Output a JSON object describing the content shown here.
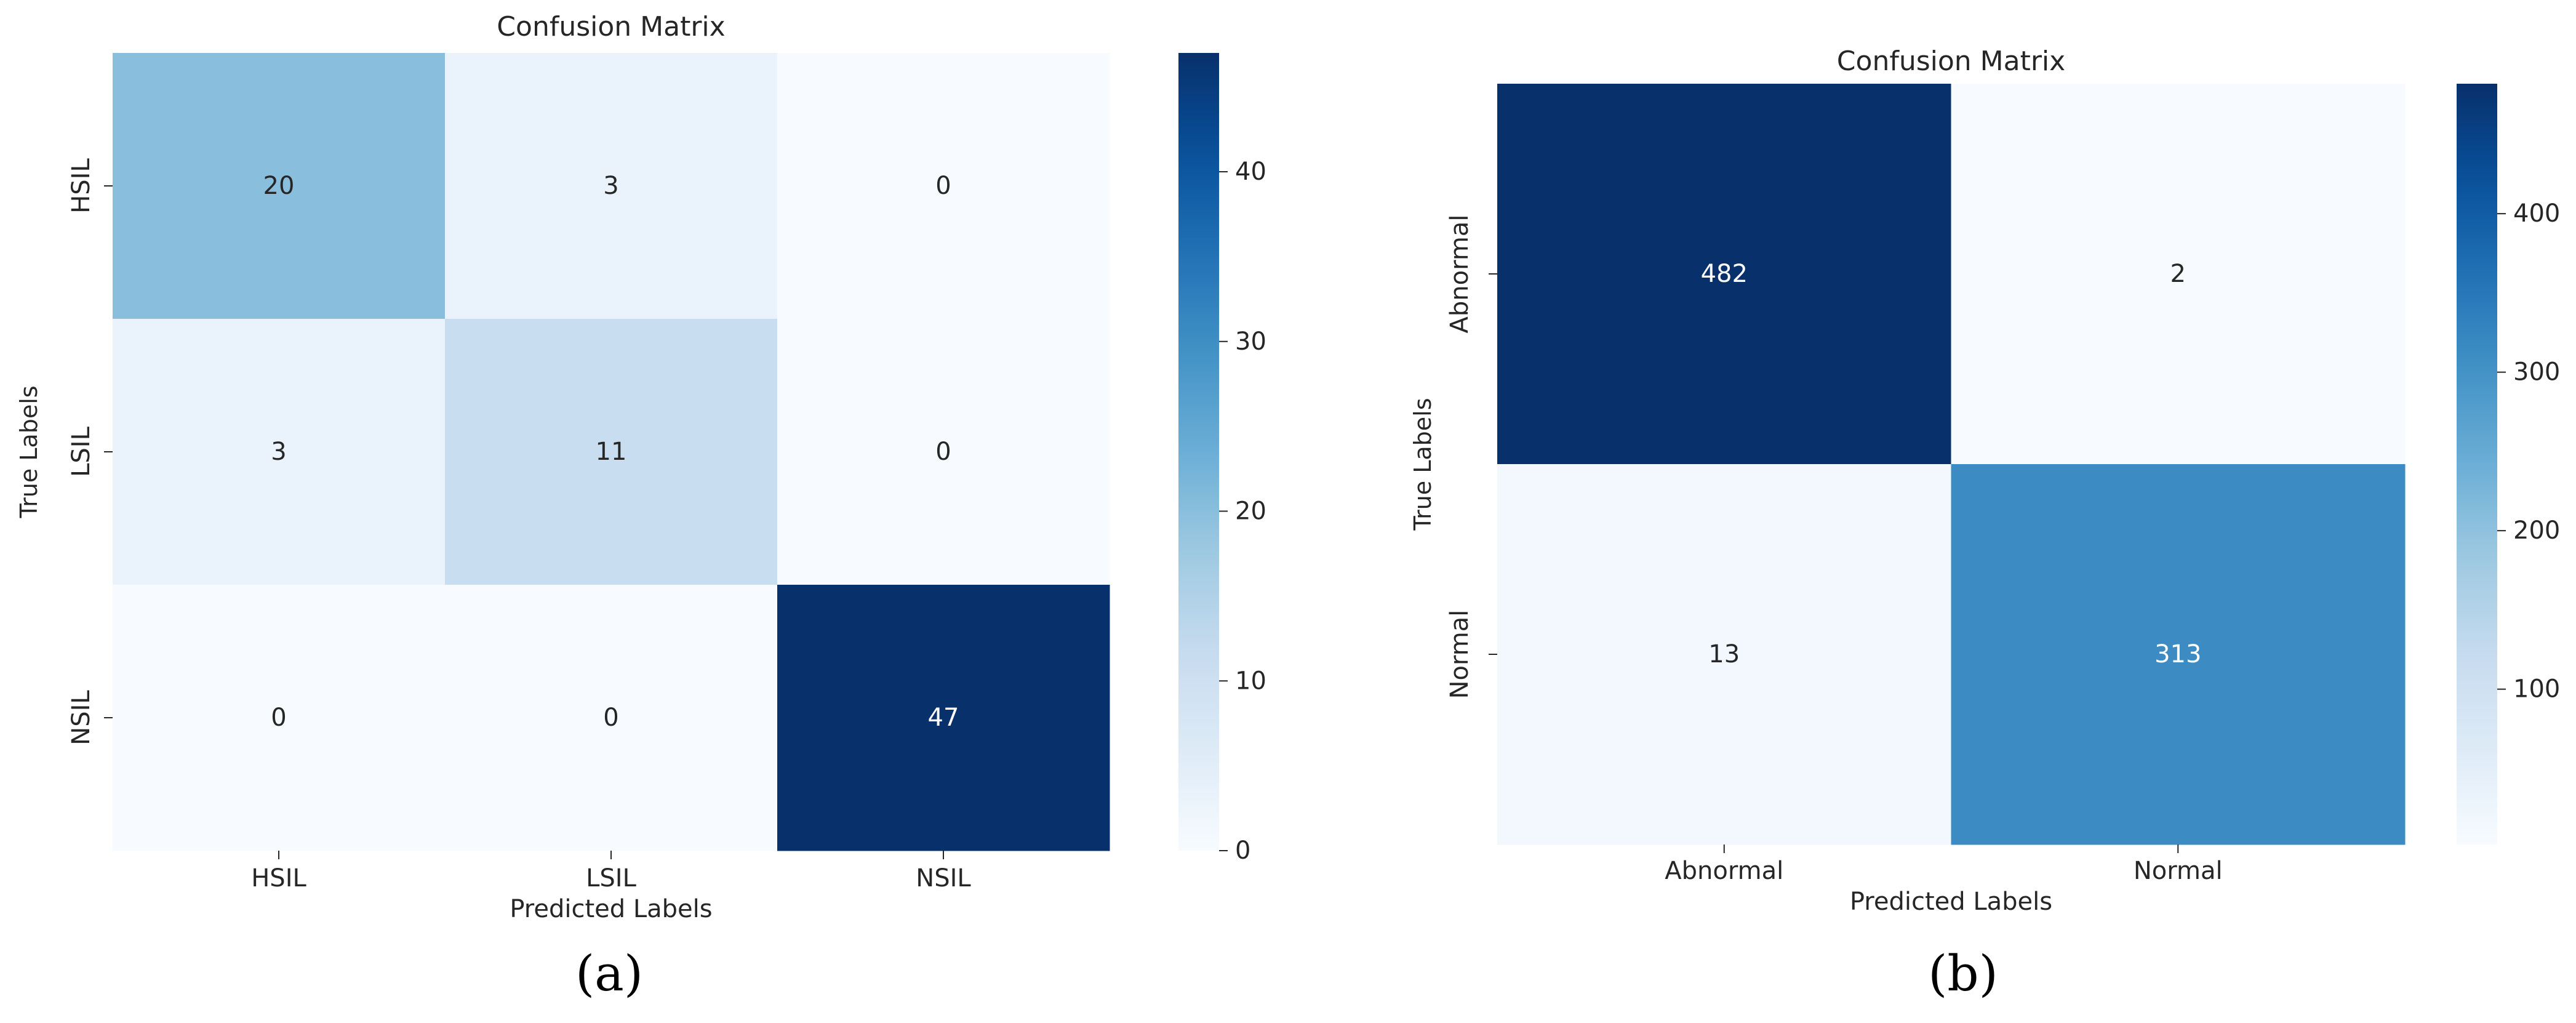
{
  "panels": [
    {
      "label": "(a)",
      "chart_data": {
        "type": "heatmap",
        "title": "Confusion Matrix",
        "xlabel": "Predicted Labels",
        "ylabel": "True Labels",
        "x_categories": [
          "HSIL",
          "LSIL",
          "NSIL"
        ],
        "y_categories": [
          "HSIL",
          "LSIL",
          "NSIL"
        ],
        "values": [
          [
            20,
            3,
            0
          ],
          [
            3,
            11,
            0
          ],
          [
            0,
            0,
            47
          ]
        ],
        "colormap": "Blues",
        "vmin": 0,
        "vmax": 47,
        "colorbar_ticks": [
          0,
          10,
          20,
          30,
          40
        ],
        "annotated": true
      }
    },
    {
      "label": "(b)",
      "chart_data": {
        "type": "heatmap",
        "title": "Confusion Matrix",
        "xlabel": "Predicted Labels",
        "ylabel": "True Labels",
        "x_categories": [
          "Abnormal",
          "Normal"
        ],
        "y_categories": [
          "Abnormal",
          "Normal"
        ],
        "values": [
          [
            482,
            2
          ],
          [
            13,
            313
          ]
        ],
        "colormap": "Blues",
        "vmin": 2,
        "vmax": 482,
        "colorbar_ticks": [
          100,
          200,
          300,
          400
        ],
        "annotated": true
      }
    }
  ]
}
